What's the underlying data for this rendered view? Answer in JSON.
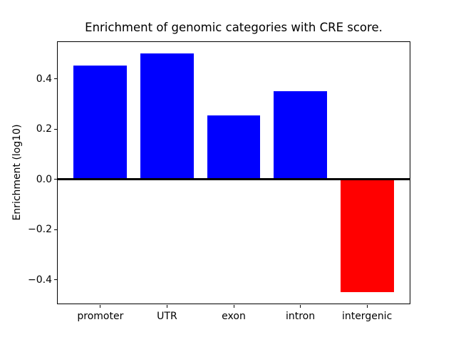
{
  "figure": {
    "background": "#ffffff",
    "text_color": "#000000",
    "axis_color": "#000000"
  },
  "chart_data": {
    "type": "bar",
    "title": "Enrichment of genomic categories with CRE score.",
    "xlabel": "",
    "ylabel": "Enrichment (log10)",
    "categories": [
      "promoter",
      "UTR",
      "exon",
      "intron",
      "intergenic"
    ],
    "values": [
      0.453,
      0.5,
      0.255,
      0.351,
      -0.45
    ],
    "bar_colors": [
      "#0000ff",
      "#0000ff",
      "#0000ff",
      "#0000ff",
      "#ff0000"
    ],
    "positive_color": "#0000ff",
    "negative_color": "#ff0000",
    "bar_width": 0.8,
    "xlim": [
      -0.64,
      4.64
    ],
    "ylim": [
      -0.4975,
      0.5475
    ],
    "yticks": [
      {
        "value": 0.4,
        "label": "0.4"
      },
      {
        "value": 0.2,
        "label": "0.2"
      },
      {
        "value": 0.0,
        "label": "0.0"
      },
      {
        "value": -0.2,
        "label": "−0.2"
      },
      {
        "value": -0.4,
        "label": "−0.4"
      }
    ],
    "zero_line": {
      "show": true,
      "color": "#000000",
      "thickness_px": 3
    },
    "grid": false,
    "legend": null
  }
}
